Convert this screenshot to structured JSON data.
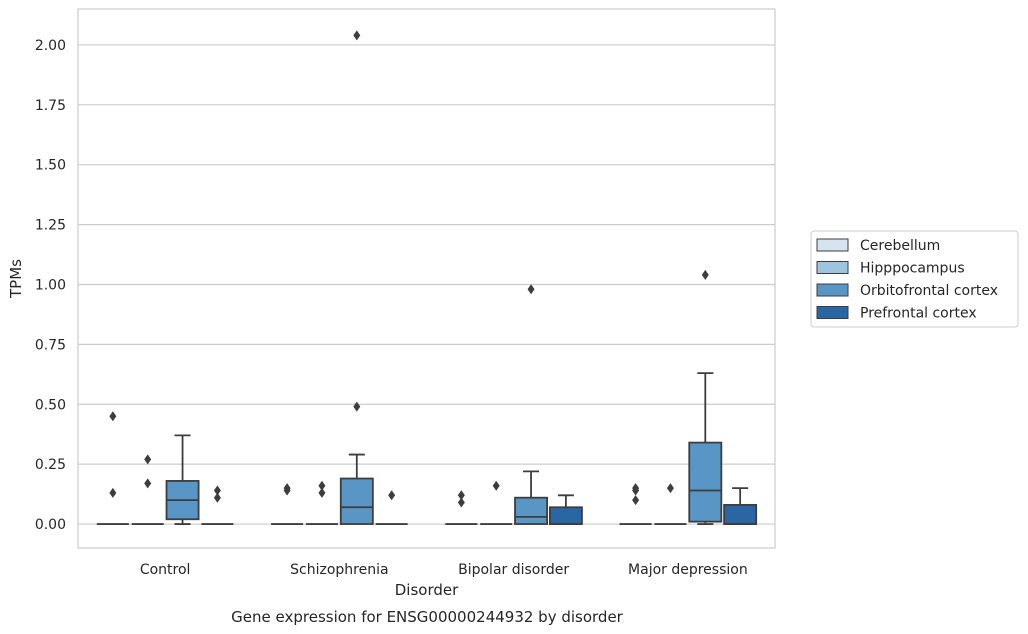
{
  "chart_data": {
    "type": "box",
    "caption": "Gene expression for ENSG00000244932 by disorder",
    "xlabel": "Disorder",
    "ylabel": "TPMs",
    "ylim": [
      -0.1,
      2.15
    ],
    "yticks": [
      "0.00",
      "0.25",
      "0.50",
      "0.75",
      "1.00",
      "1.25",
      "1.50",
      "1.75",
      "2.00"
    ],
    "ytick_values": [
      0,
      0.25,
      0.5,
      0.75,
      1.0,
      1.25,
      1.5,
      1.75,
      2.0
    ],
    "grid": true,
    "legend_position": "right",
    "categories": [
      "Control",
      "Schizophrenia",
      "Bipolar disorder",
      "Major depression"
    ],
    "series": [
      {
        "name": "Cerebellum",
        "color": "#d6e4f0",
        "boxes": [
          {
            "q1": 0,
            "median": 0,
            "q3": 0,
            "whisker_low": 0,
            "whisker_high": 0,
            "outliers": [
              0.45,
              0.13
            ]
          },
          {
            "q1": 0,
            "median": 0,
            "q3": 0,
            "whisker_low": 0,
            "whisker_high": 0,
            "outliers": [
              0.15,
              0.14
            ]
          },
          {
            "q1": 0,
            "median": 0,
            "q3": 0,
            "whisker_low": 0,
            "whisker_high": 0,
            "outliers": [
              0.12,
              0.09
            ]
          },
          {
            "q1": 0,
            "median": 0,
            "q3": 0,
            "whisker_low": 0,
            "whisker_high": 0,
            "outliers": [
              0.15,
              0.14,
              0.1
            ]
          }
        ]
      },
      {
        "name": "Hipppocampus",
        "color": "#9ec5df",
        "boxes": [
          {
            "q1": 0,
            "median": 0,
            "q3": 0,
            "whisker_low": 0,
            "whisker_high": 0,
            "outliers": [
              0.27,
              0.17
            ]
          },
          {
            "q1": 0,
            "median": 0,
            "q3": 0,
            "whisker_low": 0,
            "whisker_high": 0,
            "outliers": [
              0.16,
              0.13
            ]
          },
          {
            "q1": 0,
            "median": 0,
            "q3": 0,
            "whisker_low": 0,
            "whisker_high": 0,
            "outliers": [
              0.16
            ]
          },
          {
            "q1": 0,
            "median": 0,
            "q3": 0,
            "whisker_low": 0,
            "whisker_high": 0,
            "outliers": [
              0.15
            ]
          }
        ]
      },
      {
        "name": "Orbitofrontal cortex",
        "color": "#5a96c5",
        "boxes": [
          {
            "q1": 0.02,
            "median": 0.1,
            "q3": 0.18,
            "whisker_low": 0,
            "whisker_high": 0.37,
            "outliers": []
          },
          {
            "q1": 0,
            "median": 0.07,
            "q3": 0.19,
            "whisker_low": 0,
            "whisker_high": 0.29,
            "outliers": [
              0.49,
              2.04
            ]
          },
          {
            "q1": 0,
            "median": 0.03,
            "q3": 0.11,
            "whisker_low": 0,
            "whisker_high": 0.22,
            "outliers": [
              0.98
            ]
          },
          {
            "q1": 0.01,
            "median": 0.14,
            "q3": 0.34,
            "whisker_low": 0,
            "whisker_high": 0.63,
            "outliers": [
              1.04
            ]
          }
        ]
      },
      {
        "name": "Prefrontal cortex",
        "color": "#2a66a4",
        "boxes": [
          {
            "q1": 0,
            "median": 0,
            "q3": 0,
            "whisker_low": 0,
            "whisker_high": 0,
            "outliers": [
              0.14,
              0.11
            ]
          },
          {
            "q1": 0,
            "median": 0,
            "q3": 0,
            "whisker_low": 0,
            "whisker_high": 0,
            "outliers": [
              0.12
            ]
          },
          {
            "q1": 0,
            "median": 0,
            "q3": 0.07,
            "whisker_low": 0,
            "whisker_high": 0.12,
            "outliers": []
          },
          {
            "q1": 0,
            "median": 0,
            "q3": 0.08,
            "whisker_low": 0,
            "whisker_high": 0.15,
            "outliers": []
          }
        ]
      }
    ]
  }
}
